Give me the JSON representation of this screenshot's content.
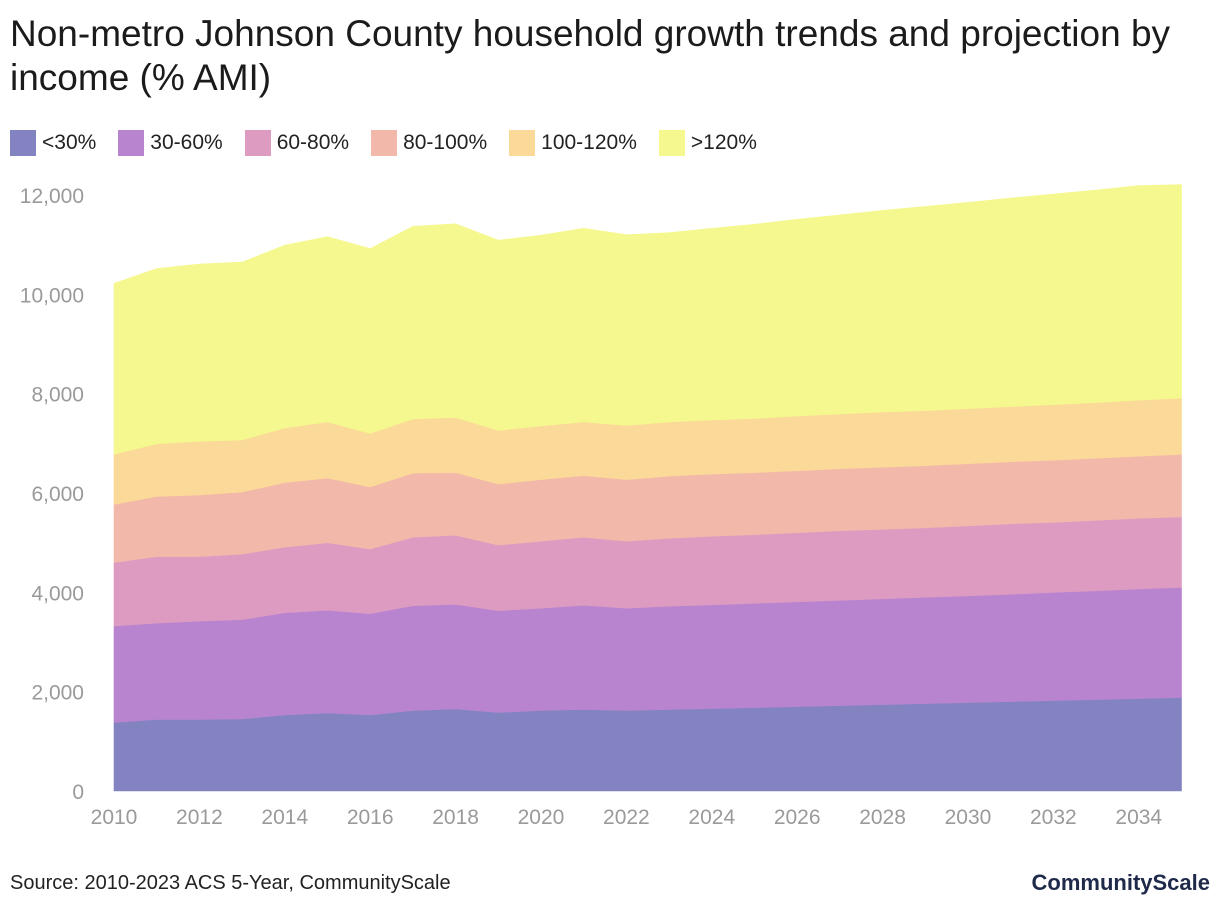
{
  "header": {
    "title": "Non-metro Johnson County household growth trends and projection by income (% AMI)"
  },
  "footer": {
    "source": "Source: 2010-2023 ACS 5-Year, CommunityScale",
    "brand": "CommunityScale"
  },
  "chart_data": {
    "type": "area",
    "stacked": true,
    "title": "Non-metro Johnson County household growth trends and projection by income (% AMI)",
    "xlabel": "",
    "ylabel": "",
    "x": [
      2010,
      2011,
      2012,
      2013,
      2014,
      2015,
      2016,
      2017,
      2018,
      2019,
      2020,
      2021,
      2022,
      2023,
      2024,
      2025,
      2026,
      2027,
      2028,
      2029,
      2030,
      2031,
      2032,
      2033,
      2034,
      2035
    ],
    "xticks": [
      "2010",
      "2012",
      "2014",
      "2016",
      "2018",
      "2020",
      "2022",
      "2024",
      "2026",
      "2028",
      "2030",
      "2032",
      "2034"
    ],
    "xlim": [
      2010,
      2035.2
    ],
    "yticks": [
      "0",
      "2,000",
      "4,000",
      "6,000",
      "8,000",
      "10,000",
      "12,000"
    ],
    "ytick_values": [
      0,
      2000,
      4000,
      6000,
      8000,
      10000,
      12000
    ],
    "ylim": [
      0,
      12000
    ],
    "grid": false,
    "legend_position": "top-left",
    "series": [
      {
        "name": "<30%",
        "color": "#8483c2",
        "values": [
          1380,
          1440,
          1440,
          1450,
          1530,
          1570,
          1530,
          1620,
          1650,
          1580,
          1620,
          1640,
          1620,
          1640,
          1660,
          1680,
          1700,
          1720,
          1740,
          1760,
          1780,
          1800,
          1820,
          1840,
          1860,
          1880
        ]
      },
      {
        "name": "30-60%",
        "color": "#b884d0",
        "values": [
          1940,
          1940,
          1980,
          2000,
          2060,
          2070,
          2040,
          2110,
          2110,
          2050,
          2060,
          2100,
          2060,
          2080,
          2090,
          2100,
          2110,
          2120,
          2130,
          2140,
          2150,
          2160,
          2180,
          2190,
          2210,
          2220
        ]
      },
      {
        "name": "60-80%",
        "color": "#de9bc1",
        "values": [
          1280,
          1340,
          1300,
          1320,
          1320,
          1360,
          1300,
          1380,
          1390,
          1320,
          1350,
          1370,
          1350,
          1370,
          1380,
          1380,
          1390,
          1400,
          1400,
          1400,
          1410,
          1420,
          1410,
          1420,
          1420,
          1420
        ]
      },
      {
        "name": "80-100%",
        "color": "#f2b8a9",
        "values": [
          1170,
          1210,
          1240,
          1250,
          1300,
          1300,
          1250,
          1290,
          1260,
          1230,
          1240,
          1240,
          1240,
          1250,
          1250,
          1250,
          1250,
          1250,
          1250,
          1250,
          1250,
          1250,
          1250,
          1250,
          1250,
          1260
        ]
      },
      {
        "name": "100-120%",
        "color": "#fbd998",
        "values": [
          1010,
          1060,
          1080,
          1050,
          1100,
          1130,
          1080,
          1090,
          1110,
          1080,
          1080,
          1080,
          1090,
          1090,
          1090,
          1090,
          1100,
          1100,
          1110,
          1110,
          1110,
          1110,
          1120,
          1120,
          1130,
          1130
        ]
      },
      {
        "name": ">120%",
        "color": "#f5f88e",
        "values": [
          3440,
          3530,
          3570,
          3580,
          3680,
          3730,
          3720,
          3880,
          3900,
          3830,
          3840,
          3900,
          3840,
          3810,
          3860,
          3910,
          3960,
          4010,
          4060,
          4110,
          4150,
          4200,
          4240,
          4280,
          4320,
          4300
        ]
      }
    ]
  }
}
